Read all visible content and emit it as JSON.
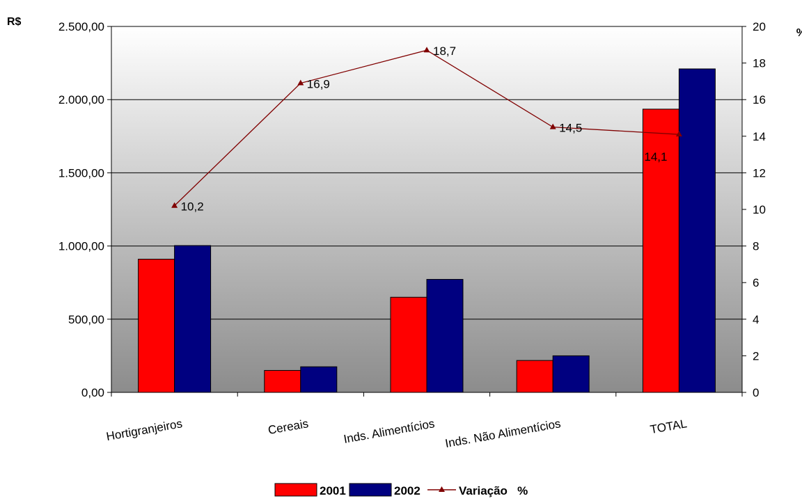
{
  "chart_data": {
    "type": "bar",
    "categories": [
      "Hortigranjeiros",
      "Cereais",
      "Inds. Alimentícios",
      "Inds. Não Alimentícios",
      "TOTAL"
    ],
    "series": [
      {
        "name": "2001",
        "type": "bar",
        "axis": "left",
        "values": [
          910,
          150,
          650,
          218,
          1935
        ]
      },
      {
        "name": "2002",
        "type": "bar",
        "axis": "left",
        "values": [
          1003,
          175,
          772,
          250,
          2210
        ]
      },
      {
        "name": "Variação   %",
        "type": "line",
        "axis": "right",
        "values": [
          10.2,
          16.9,
          18.7,
          14.5,
          14.1
        ]
      }
    ],
    "data_labels": [
      "10,2",
      "16,9",
      "18,7",
      "14,5",
      "14,1"
    ],
    "y_left": {
      "unit_label": "R$",
      "ylim": [
        0,
        2500
      ],
      "ticks": [
        0,
        500,
        1000,
        1500,
        2000,
        2500
      ],
      "tick_labels": [
        "0,00",
        "500,00",
        "1.000,00",
        "1.500,00",
        "2.000,00",
        "2.500,00"
      ]
    },
    "y_right": {
      "unit_label": "%",
      "ylim": [
        0,
        20
      ],
      "ticks": [
        0,
        2,
        4,
        6,
        8,
        10,
        12,
        14,
        16,
        18,
        20
      ],
      "tick_labels": [
        "0",
        "2",
        "4",
        "6",
        "8",
        "10",
        "12",
        "14",
        "16",
        "18",
        "20"
      ]
    },
    "grid": true,
    "legend_position": "bottom",
    "colors": {
      "2001": "#ff0000",
      "2002": "#000080",
      "line": "#800000",
      "plot_bg_top": "#ffffff",
      "plot_bg_bottom": "#8c8c8c"
    }
  }
}
